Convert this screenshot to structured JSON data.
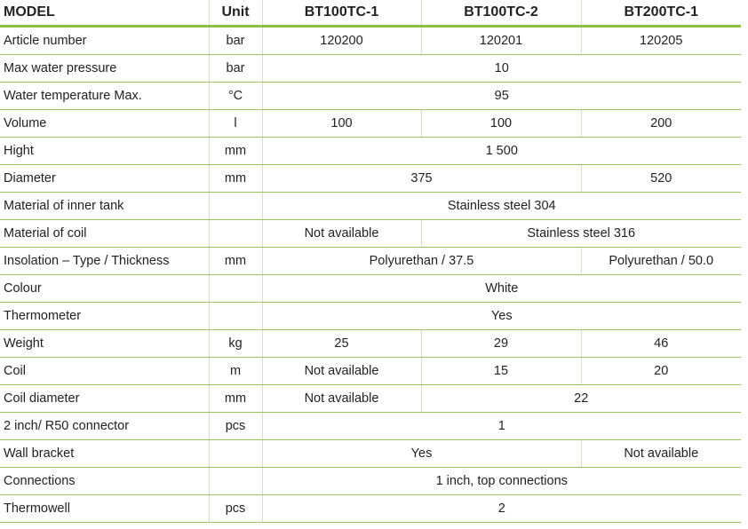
{
  "header": [
    "MODEL",
    "Unit",
    "BT100TC-1",
    "BT100TC-2",
    "BT200TC-1"
  ],
  "rows": [
    {
      "label": "Article number",
      "unit": "bar",
      "cells": [
        {
          "v": "120200",
          "span": 1
        },
        {
          "v": "120201",
          "span": 1
        },
        {
          "v": "120205",
          "span": 1
        }
      ]
    },
    {
      "label": "Max water pressure",
      "unit": "bar",
      "cells": [
        {
          "v": "10",
          "span": 3
        }
      ]
    },
    {
      "label": "Water temperature Max.",
      "unit": "°C",
      "cells": [
        {
          "v": "95",
          "span": 3
        }
      ]
    },
    {
      "label": "Volume",
      "unit": "l",
      "cells": [
        {
          "v": "100",
          "span": 1
        },
        {
          "v": "100",
          "span": 1
        },
        {
          "v": "200",
          "span": 1
        }
      ]
    },
    {
      "label": "Hight",
      "unit": "mm",
      "cells": [
        {
          "v": "1 500",
          "span": 3
        }
      ]
    },
    {
      "label": "Diameter",
      "unit": "mm",
      "cells": [
        {
          "v": "375",
          "span": 2
        },
        {
          "v": "520",
          "span": 1
        }
      ]
    },
    {
      "label": "Material of inner tank",
      "unit": "",
      "cells": [
        {
          "v": "Stainless steel 304",
          "span": 3
        }
      ]
    },
    {
      "label": "Material of coil",
      "unit": "",
      "cells": [
        {
          "v": "Not available",
          "span": 1
        },
        {
          "v": "Stainless steel 316",
          "span": 2
        }
      ]
    },
    {
      "label": "Insolation – Type / Thickness",
      "unit": "mm",
      "cells": [
        {
          "v": "Polyurethan / 37.5",
          "span": 2
        },
        {
          "v": "Polyurethan / 50.0",
          "span": 1
        }
      ]
    },
    {
      "label": "Colour",
      "unit": "",
      "cells": [
        {
          "v": "White",
          "span": 3
        }
      ]
    },
    {
      "label": "Thermometer",
      "unit": "",
      "cells": [
        {
          "v": "Yes",
          "span": 3
        }
      ]
    },
    {
      "label": "Weight",
      "unit": "kg",
      "cells": [
        {
          "v": "25",
          "span": 1
        },
        {
          "v": "29",
          "span": 1
        },
        {
          "v": "46",
          "span": 1
        }
      ]
    },
    {
      "label": "Coil",
      "unit": "m",
      "cells": [
        {
          "v": "Not available",
          "span": 1
        },
        {
          "v": "15",
          "span": 1
        },
        {
          "v": "20",
          "span": 1
        }
      ]
    },
    {
      "label": "Coil diameter",
      "unit": "mm",
      "cells": [
        {
          "v": "Not available",
          "span": 1
        },
        {
          "v": "22",
          "span": 2
        }
      ]
    },
    {
      "label": "2 inch/ R50 connector",
      "unit": "pcs",
      "cells": [
        {
          "v": "1",
          "span": 3
        }
      ]
    },
    {
      "label": "Wall bracket",
      "unit": "",
      "cells": [
        {
          "v": "Yes",
          "span": 2
        },
        {
          "v": "Not available",
          "span": 1
        }
      ]
    },
    {
      "label": "Connections",
      "unit": "",
      "cells": [
        {
          "v": "1 inch, top connections",
          "span": 3
        }
      ]
    },
    {
      "label": "Thermowell",
      "unit": "pcs",
      "cells": [
        {
          "v": "2",
          "span": 3
        }
      ]
    }
  ],
  "colors": {
    "header_rule": "#8cbf45",
    "row_rule": "#9cc45c"
  }
}
